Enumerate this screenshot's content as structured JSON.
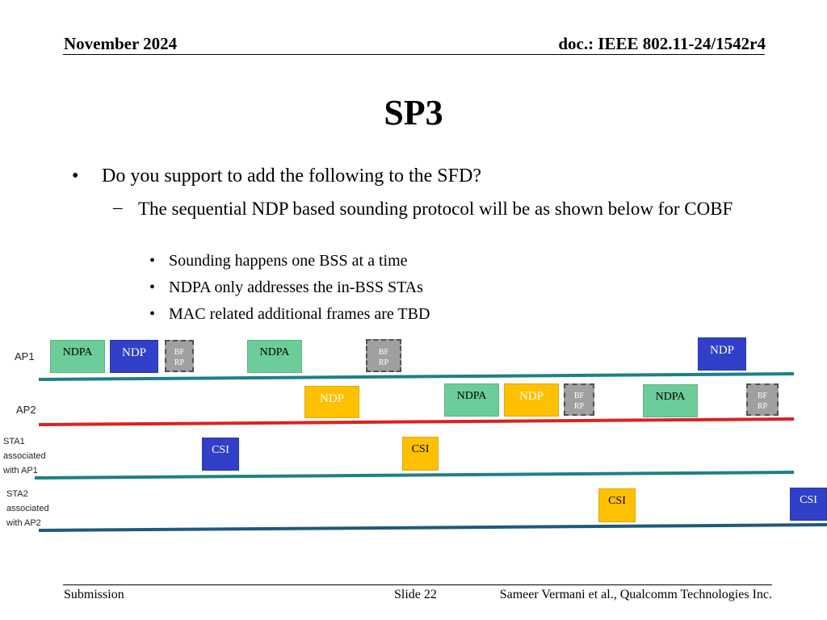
{
  "header": {
    "date": "November 2024",
    "doc": "doc.: IEEE 802.11-24/1542r4"
  },
  "title": "SP3",
  "bullets": {
    "main": "Do you support to add the following to the SFD?",
    "sub": "The sequential NDP based sounding protocol will be as shown below for COBF",
    "points": [
      "Sounding happens one BSS at a time",
      "NDPA only addresses the in-BSS STAs",
      "MAC related additional frames are TBD"
    ],
    "bullet_symbol": "•",
    "dash_symbol": "–"
  },
  "diagram": {
    "rows": {
      "ap1": "AP1",
      "ap2": "AP2",
      "sta1": [
        "STA1",
        "associated",
        "with AP1"
      ],
      "sta2": [
        "STA2",
        "associated",
        "with AP2"
      ]
    },
    "frames": {
      "ndpa": "NDPA",
      "ndp": "NDP",
      "bf": "BF",
      "rp": "RP",
      "csi": "CSI"
    },
    "colors": {
      "ap1_line": "#1f7f86",
      "ap2_line": "#e02020",
      "sta1_line": "#1f7f86",
      "sta2_line": "#1f5a7a",
      "ndpa": "#6ccc9a",
      "blue": "#3040c8",
      "yellow": "#ffc000",
      "bfrp": "#a0a0a0"
    }
  },
  "footer": {
    "left": "Submission",
    "center": "Slide 22",
    "right": "Sameer Vermani et al., Qualcomm Technologies Inc."
  }
}
